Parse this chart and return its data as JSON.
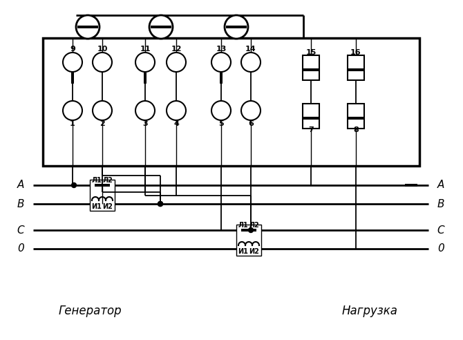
{
  "bg_color": "#ffffff",
  "line_color": "#000000",
  "fig_width": 6.7,
  "fig_height": 4.92,
  "generator_label": "Генератор",
  "load_label": "Нагрузка",
  "term_top": [
    "9",
    "10",
    "11",
    "12",
    "13",
    "14",
    "15",
    "16"
  ],
  "term_bot": [
    "1",
    "2",
    "3",
    "4",
    "5",
    "6",
    "7",
    "8"
  ],
  "phase_left": [
    "A",
    "B",
    "C",
    "0"
  ],
  "phase_right": [
    "A",
    "B",
    "C",
    "0"
  ]
}
